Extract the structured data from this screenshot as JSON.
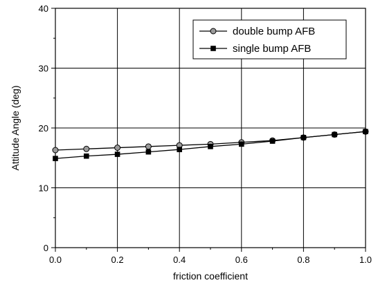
{
  "chart_data": {
    "type": "line",
    "xlabel": "friction coefficient",
    "ylabel": "Attitude Angle (deg)",
    "xlim": [
      0.0,
      1.0
    ],
    "ylim": [
      0,
      40
    ],
    "xticks": [
      "0.0",
      "0.2",
      "0.4",
      "0.6",
      "0.8",
      "1.0"
    ],
    "yticks": [
      "0",
      "10",
      "20",
      "30",
      "40"
    ],
    "grid": true,
    "legend_position": "top-right",
    "series": [
      {
        "name": "double bump AFB",
        "marker": "circle",
        "color": "#000000",
        "marker_color": "#9a9a9a",
        "x": [
          0.0,
          0.1,
          0.2,
          0.3,
          0.4,
          0.5,
          0.6,
          0.7,
          0.8,
          0.9,
          1.0
        ],
        "y": [
          16.3,
          16.5,
          16.7,
          16.9,
          17.1,
          17.3,
          17.6,
          17.9,
          18.4,
          18.9,
          19.4
        ]
      },
      {
        "name": "single bump AFB",
        "marker": "square",
        "color": "#000000",
        "marker_color": "#000000",
        "x": [
          0.0,
          0.1,
          0.2,
          0.3,
          0.4,
          0.5,
          0.6,
          0.7,
          0.8,
          0.9,
          1.0
        ],
        "y": [
          14.9,
          15.3,
          15.6,
          16.0,
          16.4,
          16.9,
          17.3,
          17.8,
          18.4,
          18.9,
          19.4
        ]
      }
    ]
  }
}
